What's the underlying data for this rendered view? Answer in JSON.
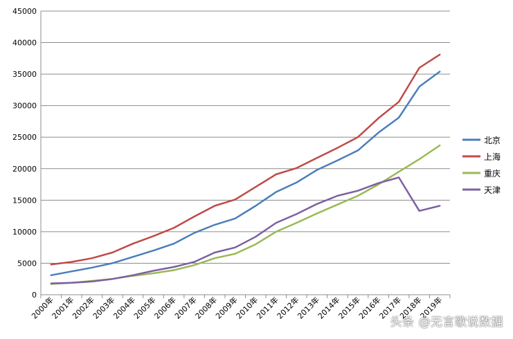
{
  "chart_data": {
    "type": "line",
    "title": "",
    "xlabel": "",
    "ylabel": "",
    "categories": [
      "2000年",
      "2001年",
      "2002年",
      "2003年",
      "2004年",
      "2005年",
      "2006年",
      "2007年",
      "2008年",
      "2009年",
      "2010年",
      "2011年",
      "2012年",
      "2013年",
      "2014年",
      "2015年",
      "2016年",
      "2017年",
      "2018年",
      "2019年"
    ],
    "ylim": [
      0,
      45000
    ],
    "yticks": [
      0,
      5000,
      10000,
      15000,
      20000,
      25000,
      30000,
      35000,
      40000,
      45000
    ],
    "ytick_labels": [
      "0",
      "5000",
      "10000",
      "15000",
      "20000",
      "25000",
      "30000",
      "35000",
      "40000",
      "45000"
    ],
    "grid": true,
    "legend_position": "right",
    "series": [
      {
        "name": "北京",
        "color": "#4A7EBB",
        "values": [
          3100,
          3700,
          4300,
          5000,
          6000,
          7000,
          8100,
          9800,
          11100,
          12100,
          14100,
          16300,
          17800,
          19800,
          21300,
          22900,
          25700,
          28100,
          33000,
          35400
        ]
      },
      {
        "name": "上海",
        "color": "#BE4B48",
        "values": [
          4800,
          5200,
          5800,
          6700,
          8100,
          9300,
          10600,
          12400,
          14100,
          15100,
          17100,
          19100,
          20100,
          21700,
          23300,
          25000,
          28000,
          30600,
          36000,
          38100
        ]
      },
      {
        "name": "重庆",
        "color": "#98B954",
        "values": [
          1700,
          1900,
          2200,
          2500,
          3000,
          3400,
          3900,
          4700,
          5800,
          6500,
          8000,
          10000,
          11400,
          12900,
          14300,
          15700,
          17500,
          19500,
          21500,
          23700
        ]
      },
      {
        "name": "天津",
        "color": "#7D60A0",
        "values": [
          1800,
          1900,
          2100,
          2500,
          3100,
          3800,
          4400,
          5200,
          6700,
          7500,
          9200,
          11400,
          12800,
          14400,
          15700,
          16500,
          17700,
          18600,
          13300,
          14100
        ]
      }
    ]
  },
  "watermark": "头条 @无言歌说数据"
}
